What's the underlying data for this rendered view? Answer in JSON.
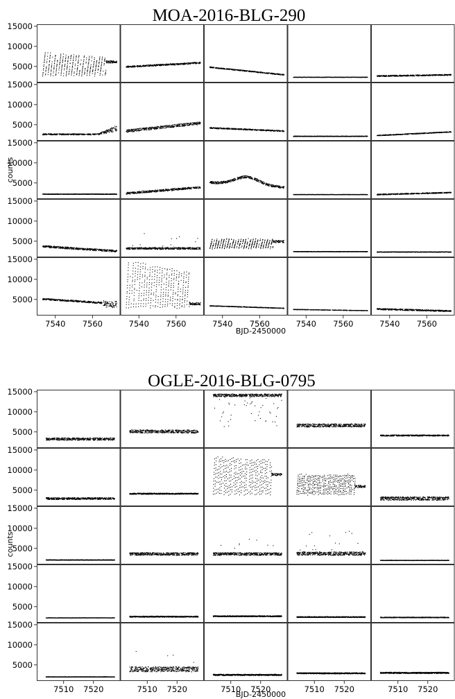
{
  "chart_data": [
    {
      "type": "scatter",
      "title": "MOA-2016-BLG-290",
      "xlabel": "BJD-2450000",
      "ylabel": "counts",
      "grid": false,
      "layout": "5x5 panels, shared axes",
      "xlim": [
        7530,
        7575
      ],
      "ylim": [
        1000,
        15500
      ],
      "xticks": [
        7540,
        7560
      ],
      "yticks": [
        5000,
        10000,
        15000
      ],
      "panels": [
        {
          "row": 0,
          "col": 0,
          "pattern": "saw",
          "base": 2800,
          "amp": 5800,
          "trend": -0.25,
          "period": 1.4,
          "tail": 6200
        },
        {
          "row": 0,
          "col": 1,
          "pattern": "slope",
          "start": 5000,
          "end": 6000,
          "spread": 400
        },
        {
          "row": 0,
          "col": 2,
          "pattern": "slope",
          "start": 4900,
          "end": 3000,
          "spread": 250
        },
        {
          "row": 0,
          "col": 3,
          "pattern": "flat",
          "level": 2400,
          "spread": 80
        },
        {
          "row": 0,
          "col": 4,
          "pattern": "slope",
          "start": 2700,
          "end": 3000,
          "spread": 300
        },
        {
          "row": 1,
          "col": 0,
          "pattern": "rise-end",
          "start": 2700,
          "end": 4500,
          "spread": 900
        },
        {
          "row": 1,
          "col": 1,
          "pattern": "slope",
          "start": 3500,
          "end": 5500,
          "spread": 700
        },
        {
          "row": 1,
          "col": 2,
          "pattern": "slope",
          "start": 4300,
          "end": 3500,
          "spread": 300
        },
        {
          "row": 1,
          "col": 3,
          "pattern": "flat",
          "level": 2200,
          "spread": 150
        },
        {
          "row": 1,
          "col": 4,
          "pattern": "slope",
          "start": 2400,
          "end": 3300,
          "spread": 200
        },
        {
          "row": 2,
          "col": 0,
          "pattern": "flat",
          "level": 2300,
          "spread": 150
        },
        {
          "row": 2,
          "col": 1,
          "pattern": "slope",
          "start": 2500,
          "end": 4000,
          "spread": 500
        },
        {
          "row": 2,
          "col": 2,
          "pattern": "bump",
          "base": 5200,
          "peak": 7200,
          "center": 7552,
          "spread": 600
        },
        {
          "row": 2,
          "col": 3,
          "pattern": "flat",
          "level": 2200,
          "spread": 80
        },
        {
          "row": 2,
          "col": 4,
          "pattern": "slope",
          "start": 2200,
          "end": 2700,
          "spread": 250
        },
        {
          "row": 3,
          "col": 0,
          "pattern": "slope",
          "start": 3800,
          "end": 2600,
          "spread": 500
        },
        {
          "row": 3,
          "col": 1,
          "pattern": "noisy",
          "level": 3300,
          "spread": 500,
          "spikes": 7000
        },
        {
          "row": 3,
          "col": 2,
          "pattern": "saw",
          "base": 3300,
          "amp": 2300,
          "trend": 0.0,
          "period": 1.3,
          "tail": 5000
        },
        {
          "row": 3,
          "col": 3,
          "pattern": "flat",
          "level": 2500,
          "spread": 120
        },
        {
          "row": 3,
          "col": 4,
          "pattern": "flat",
          "level": 2400,
          "spread": 120
        },
        {
          "row": 4,
          "col": 0,
          "pattern": "slope-end",
          "start": 5200,
          "end": 4000,
          "spread": 400
        },
        {
          "row": 4,
          "col": 1,
          "pattern": "saw",
          "base": 3000,
          "amp": 12000,
          "trend": -0.3,
          "period": 1.3,
          "tail": 4000
        },
        {
          "row": 4,
          "col": 2,
          "pattern": "slope",
          "start": 3500,
          "end": 2900,
          "spread": 150
        },
        {
          "row": 4,
          "col": 3,
          "pattern": "slope",
          "start": 2600,
          "end": 2300,
          "spread": 100
        },
        {
          "row": 4,
          "col": 4,
          "pattern": "slope",
          "start": 2700,
          "end": 2200,
          "spread": 350
        }
      ]
    },
    {
      "type": "scatter",
      "title": "OGLE-2016-BLG-0795",
      "xlabel": "BJD-2450000",
      "ylabel": "counts",
      "grid": false,
      "layout": "5x5 panels, shared axes",
      "xlim": [
        7501,
        7529
      ],
      "ylim": [
        1000,
        15500
      ],
      "xticks": [
        7510,
        7520
      ],
      "yticks": [
        5000,
        10000,
        15000
      ],
      "panels": [
        {
          "row": 0,
          "col": 0,
          "pattern": "noisy",
          "level": 3300,
          "spread": 600,
          "spikes": 0
        },
        {
          "row": 0,
          "col": 1,
          "pattern": "noisy",
          "level": 5200,
          "spread": 800,
          "spikes": 0
        },
        {
          "row": 0,
          "col": 2,
          "pattern": "top-dips",
          "level": 14200,
          "spread": 700,
          "dips": 6000
        },
        {
          "row": 0,
          "col": 3,
          "pattern": "noisy",
          "level": 6700,
          "spread": 800,
          "spikes": 0
        },
        {
          "row": 0,
          "col": 4,
          "pattern": "noisy",
          "level": 4200,
          "spread": 300,
          "spikes": 0
        },
        {
          "row": 1,
          "col": 0,
          "pattern": "noisy",
          "level": 3000,
          "spread": 500,
          "spikes": 0
        },
        {
          "row": 1,
          "col": 1,
          "pattern": "flat",
          "level": 4200,
          "spread": 300
        },
        {
          "row": 1,
          "col": 2,
          "pattern": "saw",
          "base": 4000,
          "amp": 9500,
          "trend": -0.1,
          "period": 0.9,
          "tail": 9000
        },
        {
          "row": 1,
          "col": 3,
          "pattern": "saw",
          "base": 4000,
          "amp": 5000,
          "trend": 0.0,
          "period": 0.9,
          "tail": 6000
        },
        {
          "row": 1,
          "col": 4,
          "pattern": "noisy",
          "level": 3000,
          "spread": 900,
          "spikes": 0
        },
        {
          "row": 2,
          "col": 0,
          "pattern": "flat",
          "level": 2200,
          "spread": 150
        },
        {
          "row": 2,
          "col": 1,
          "pattern": "noisy",
          "level": 3700,
          "spread": 700,
          "spikes": 0
        },
        {
          "row": 2,
          "col": 2,
          "pattern": "noisy",
          "level": 3700,
          "spread": 700,
          "spikes": 8000
        },
        {
          "row": 2,
          "col": 3,
          "pattern": "noisy",
          "level": 3800,
          "spread": 900,
          "spikes": 9500
        },
        {
          "row": 2,
          "col": 4,
          "pattern": "flat",
          "level": 2100,
          "spread": 120
        },
        {
          "row": 3,
          "col": 0,
          "pattern": "flat",
          "level": 2300,
          "spread": 60
        },
        {
          "row": 3,
          "col": 1,
          "pattern": "flat",
          "level": 2600,
          "spread": 300
        },
        {
          "row": 3,
          "col": 2,
          "pattern": "flat",
          "level": 2700,
          "spread": 300
        },
        {
          "row": 3,
          "col": 3,
          "pattern": "flat",
          "level": 2500,
          "spread": 250
        },
        {
          "row": 3,
          "col": 4,
          "pattern": "flat",
          "level": 2400,
          "spread": 200
        },
        {
          "row": 4,
          "col": 0,
          "pattern": "flat",
          "level": 2100,
          "spread": 120
        },
        {
          "row": 4,
          "col": 1,
          "pattern": "noisy",
          "level": 4000,
          "spread": 1300,
          "spikes": 8500
        },
        {
          "row": 4,
          "col": 2,
          "pattern": "flat",
          "level": 2600,
          "spread": 350
        },
        {
          "row": 4,
          "col": 3,
          "pattern": "flat",
          "level": 3000,
          "spread": 300
        },
        {
          "row": 4,
          "col": 4,
          "pattern": "flat",
          "level": 3100,
          "spread": 350
        }
      ]
    }
  ],
  "colors": {
    "points": "#000000",
    "frame": "#000000",
    "background": "#ffffff"
  }
}
